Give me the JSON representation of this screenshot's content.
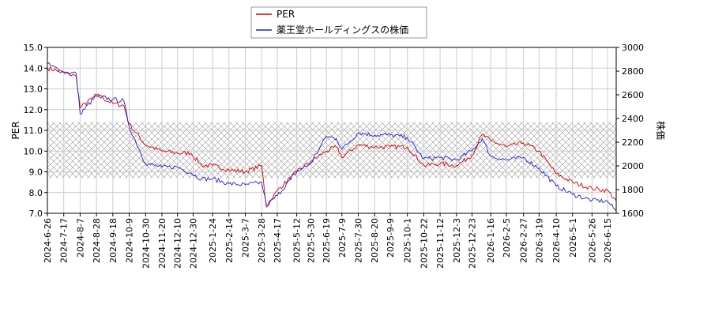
{
  "chart_data": {
    "type": "line",
    "legend": {
      "placement": "top-center",
      "entries": [
        "PER",
        "薬王堂ホールディングスの株価"
      ]
    },
    "y_left": {
      "label": "PER",
      "range": [
        7.0,
        15.0
      ],
      "ticks": [
        "7.0",
        "8.0",
        "9.0",
        "10.0",
        "11.0",
        "12.0",
        "13.0",
        "14.0",
        "15.0"
      ]
    },
    "y_right": {
      "label": "株価",
      "range": [
        1600,
        3000
      ],
      "ticks": [
        "1600",
        "1800",
        "2000",
        "2200",
        "2400",
        "2600",
        "2800",
        "3000"
      ]
    },
    "x_ticks": [
      "2024-6-26",
      "2024-7-17",
      "2024-8-7",
      "2024-8-28",
      "2024-9-18",
      "2024-10-9",
      "2024-10-30",
      "2024-11-20",
      "2024-12-10",
      "2024-12-30",
      "2025-1-24",
      "2025-2-14",
      "2025-3-7",
      "2025-3-28",
      "2025-4-17",
      "2025-5-12",
      "2025-5-30",
      "2025-6-19",
      "2025-7-9",
      "2025-7-30",
      "2025-8-20",
      "2025-9-9",
      "2025-10-1",
      "2025-10-22",
      "2025-11-12",
      "2025-12-3",
      "2025-12-23",
      "2026-1-16",
      "2026-2-5",
      "2026-2-27",
      "2026-3-19",
      "2026-4-10",
      "2026-5-1",
      "2026-5-26",
      "2026-6-15"
    ],
    "grid": true,
    "hatched_band": {
      "axis": "PER",
      "range": [
        8.7,
        11.4
      ]
    },
    "series": [
      {
        "name": "PER",
        "axis": "left",
        "color": "#d40000",
        "x": [
          "2024-6-26",
          "2024-7-17",
          "2024-8-2",
          "2024-8-7",
          "2024-8-28",
          "2024-9-18",
          "2024-10-2",
          "2024-10-9",
          "2024-10-30",
          "2024-11-20",
          "2024-12-10",
          "2024-12-27",
          "2025-1-10",
          "2025-1-24",
          "2025-2-14",
          "2025-3-7",
          "2025-3-28",
          "2025-4-3",
          "2025-4-17",
          "2025-5-12",
          "2025-5-30",
          "2025-6-19",
          "2025-7-2",
          "2025-7-9",
          "2025-7-30",
          "2025-8-20",
          "2025-9-9",
          "2025-10-1",
          "2025-10-22",
          "2025-11-12",
          "2025-12-3",
          "2025-12-23",
          "2026-1-5",
          "2026-1-16",
          "2026-2-5",
          "2026-2-27",
          "2026-3-19",
          "2026-4-10",
          "2026-5-1",
          "2026-5-26",
          "2026-6-15",
          "2026-6-26"
        ],
        "values": [
          14.0,
          13.8,
          13.6,
          12.1,
          12.7,
          12.3,
          12.2,
          11.3,
          10.3,
          10.0,
          9.9,
          9.9,
          9.3,
          9.3,
          9.1,
          9.0,
          9.3,
          7.3,
          8.1,
          9.0,
          9.5,
          10.0,
          10.2,
          9.7,
          10.3,
          10.2,
          10.2,
          10.2,
          9.3,
          9.4,
          9.3,
          9.8,
          10.8,
          10.5,
          10.2,
          10.4,
          10.0,
          8.9,
          8.5,
          8.2,
          8.1,
          7.6
        ]
      },
      {
        "name": "薬王堂ホールディングスの株価",
        "axis": "right",
        "color": "#2020d0",
        "x": [
          "2024-6-26",
          "2024-7-17",
          "2024-8-2",
          "2024-8-7",
          "2024-8-28",
          "2024-9-18",
          "2024-10-2",
          "2024-10-9",
          "2024-10-30",
          "2024-11-20",
          "2024-12-10",
          "2024-12-27",
          "2025-1-10",
          "2025-1-24",
          "2025-2-14",
          "2025-3-7",
          "2025-3-28",
          "2025-4-3",
          "2025-4-17",
          "2025-5-12",
          "2025-5-30",
          "2025-6-19",
          "2025-7-2",
          "2025-7-9",
          "2025-7-30",
          "2025-8-20",
          "2025-9-9",
          "2025-10-1",
          "2025-10-22",
          "2025-11-12",
          "2025-12-3",
          "2025-12-23",
          "2026-1-5",
          "2026-1-16",
          "2026-2-5",
          "2026-2-27",
          "2026-3-19",
          "2026-4-10",
          "2026-5-1",
          "2026-5-26",
          "2026-6-15",
          "2026-6-26"
        ],
        "values": [
          2860,
          2790,
          2780,
          2440,
          2590,
          2560,
          2550,
          2330,
          2020,
          1990,
          1990,
          1940,
          1890,
          1890,
          1850,
          1840,
          1860,
          1670,
          1750,
          1950,
          2020,
          2250,
          2230,
          2140,
          2280,
          2260,
          2260,
          2240,
          2060,
          2070,
          2050,
          2130,
          2230,
          2080,
          2050,
          2070,
          1980,
          1830,
          1760,
          1710,
          1700,
          1620
        ]
      }
    ]
  }
}
